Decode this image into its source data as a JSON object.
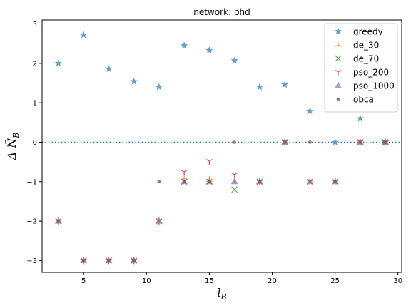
{
  "chart_data": {
    "type": "scatter",
    "title": "network: phd",
    "xlabel": "l_B",
    "ylabel": "Δ N̄_B",
    "xlim": [
      1.7,
      30.3
    ],
    "ylim": [
      -3.3,
      3.1
    ],
    "xticks": [
      5,
      10,
      15,
      20,
      25,
      30
    ],
    "yticks": [
      -3,
      -2,
      -1,
      0,
      1,
      2,
      3
    ],
    "reference_line": {
      "y": 0,
      "style": "dotted",
      "color": "#1f77b4"
    },
    "legend_position": "top-right",
    "series": [
      {
        "name": "greedy",
        "marker": "star",
        "color": "#1f77b4",
        "x": [
          3,
          5,
          7,
          9,
          11,
          13,
          15,
          17,
          19,
          21,
          23,
          25,
          27,
          29
        ],
        "y": [
          2.0,
          2.72,
          1.86,
          1.54,
          1.4,
          2.45,
          2.33,
          2.07,
          1.4,
          1.46,
          0.79,
          0.0,
          0.6,
          0.0
        ]
      },
      {
        "name": "de_30",
        "marker": "tri_up",
        "color": "#ff7f0e",
        "x": [
          3,
          5,
          7,
          9,
          11,
          13,
          15,
          17,
          19,
          21,
          23,
          25,
          27,
          29
        ],
        "y": [
          -2.0,
          -3.0,
          -3.0,
          -3.0,
          -2.0,
          -0.9,
          -0.95,
          -1.0,
          -1.0,
          0.0,
          -1.0,
          -1.0,
          0.0,
          0.0
        ]
      },
      {
        "name": "de_70",
        "marker": "x",
        "color": "#2ca02c",
        "x": [
          3,
          5,
          7,
          9,
          11,
          13,
          15,
          17,
          19,
          21,
          23,
          25,
          27,
          29
        ],
        "y": [
          -2.0,
          -3.0,
          -3.0,
          -3.0,
          -2.0,
          -1.0,
          -1.0,
          -1.2,
          -1.0,
          0.0,
          -1.0,
          -1.0,
          0.0,
          0.0
        ]
      },
      {
        "name": "pso_200",
        "marker": "tri_down",
        "color": "#d62728",
        "x": [
          3,
          5,
          7,
          9,
          11,
          13,
          15,
          17,
          19,
          21,
          23,
          25,
          27,
          29
        ],
        "y": [
          -2.0,
          -3.0,
          -3.0,
          -3.0,
          -2.0,
          -0.75,
          -0.48,
          -0.82,
          -1.0,
          0.0,
          -1.0,
          -1.0,
          0.0,
          0.0
        ]
      },
      {
        "name": "pso_1000",
        "marker": "triangle",
        "color": "#9467bd",
        "x": [
          3,
          5,
          7,
          9,
          11,
          13,
          15,
          17,
          19,
          21,
          23,
          25,
          27,
          29
        ],
        "y": [
          -2.0,
          -3.0,
          -3.0,
          -3.0,
          -2.0,
          -1.0,
          -1.0,
          -1.0,
          -1.0,
          0.0,
          -1.0,
          -1.0,
          0.0,
          0.0
        ]
      },
      {
        "name": "obca",
        "marker": "circle",
        "color": "#8c564b",
        "x": [
          3,
          5,
          7,
          9,
          11,
          13,
          15,
          17,
          19,
          21,
          23,
          25,
          27,
          29
        ],
        "y": [
          -2.0,
          -3.0,
          -3.0,
          -3.0,
          -1.0,
          -1.0,
          -1.0,
          0.0,
          -1.0,
          0.0,
          0.0,
          -1.0,
          0.0,
          0.0
        ]
      }
    ]
  }
}
